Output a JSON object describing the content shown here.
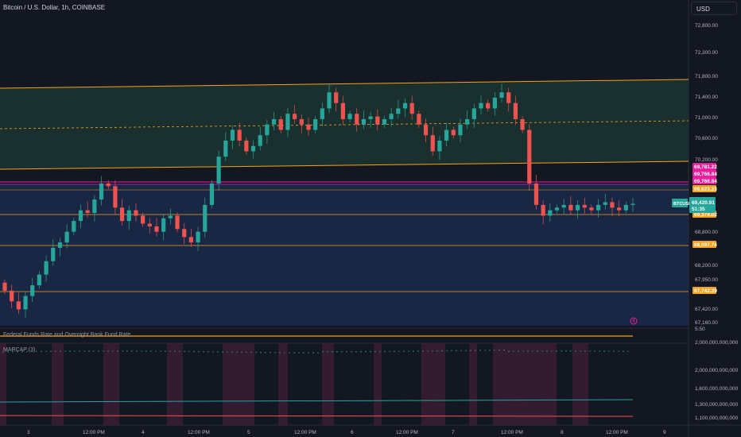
{
  "header": {
    "symbol_title": "Bitcoin / U.S. Dollar, 1h, COINBASE"
  },
  "currency": {
    "label": "USD"
  },
  "indicators": {
    "fed_rate": "Federal Funds Rate and Overnight Bank Fund Rate",
    "marcap": "MARCAP (3)"
  },
  "price_axis": {
    "labels": [
      "72,800.00",
      "72,300.00",
      "71,800.00",
      "71,400.00",
      "71,000.00",
      "70,600.00",
      "70,200.00",
      "68,800.00",
      "68,200.00",
      "67,950.00",
      "67,420.00",
      "67,160.00"
    ],
    "small_label": "5.50"
  },
  "price_tags": [
    {
      "text": "69,781.22",
      "color": "#e91e9c"
    },
    {
      "text": "69,766.84",
      "color": "#e91e9c"
    },
    {
      "text": "69,766.84",
      "color": "#e91e9c"
    },
    {
      "text": "69,623.23",
      "color": "#f7a21b"
    },
    {
      "text": "69,374.02",
      "color": "#f7a21b"
    },
    {
      "text": "68,597.74",
      "color": "#f7a21b"
    },
    {
      "text": "67,742.29",
      "color": "#f7a21b"
    }
  ],
  "current_price": {
    "ticker": "BTCUSD",
    "price": "69,420.91",
    "countdown": "51:35",
    "color": "#26a69a"
  },
  "marcap_axis": [
    "2,000,000,000,000",
    "2,000,000,000,000",
    "1,600,000,000,000",
    "1,300,000,000,000",
    "1,100,000,000,000"
  ],
  "time_axis": [
    "3",
    "12:00 PM",
    "4",
    "12:00 PM",
    "5",
    "12:00 PM",
    "6",
    "12:00 PM",
    "7",
    "12:00 PM",
    "8",
    "12:00 PM",
    "9"
  ],
  "colors": {
    "up": "#26a69a",
    "down": "#ef5350",
    "level": "#f7a21b",
    "magenta": "#e91e9c"
  },
  "chart_data": {
    "type": "candlestick",
    "title": "Bitcoin / U.S. Dollar, 1h, COINBASE",
    "close_approx": [
      67800,
      67600,
      67450,
      67700,
      67900,
      68100,
      68350,
      68600,
      68700,
      68900,
      69100,
      69300,
      69250,
      69500,
      69800,
      69750,
      69350,
      69100,
      69300,
      69200,
      69050,
      69000,
      68900,
      69150,
      69200,
      68950,
      68800,
      68700,
      68900,
      69400,
      69800,
      70300,
      70600,
      70800,
      70600,
      70400,
      70500,
      70700,
      70900,
      71000,
      70800,
      71100,
      71000,
      70900,
      70800,
      71000,
      71200,
      71500,
      71300,
      71000,
      71100,
      70900,
      71000,
      71050,
      70900,
      71000,
      71100,
      71200,
      71300,
      71100,
      70900,
      70700,
      70400,
      70600,
      70800,
      70700,
      70900,
      71000,
      71200,
      71300,
      71200,
      71400,
      71500,
      71300,
      71000,
      70800,
      69800,
      69400,
      69200,
      69300,
      69350,
      69400,
      69300,
      69400,
      69350,
      69300,
      69400,
      69450,
      69350,
      69300,
      69400,
      69420
    ]
  }
}
